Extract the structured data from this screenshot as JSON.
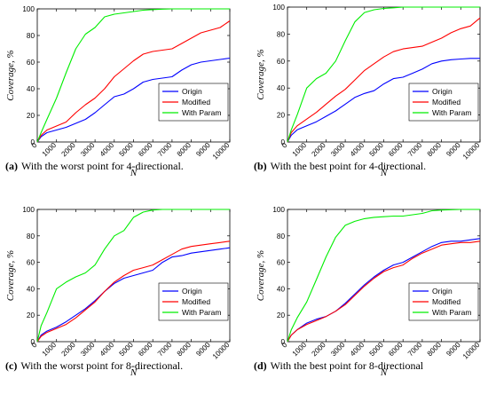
{
  "colors": {
    "Origin": "#0000ff",
    "Modified": "#ff0000",
    "With Param": "#00ee00"
  },
  "chart_data": [
    {
      "id": "a",
      "type": "line",
      "caption_tag": "(a)",
      "caption_text": "With the worst point for 4-directional.",
      "xlabel": "N",
      "ylabel": "Coverage, %",
      "xlim": [
        0,
        10000
      ],
      "ylim": [
        0,
        100
      ],
      "xticks": [
        0,
        1000,
        2000,
        3000,
        4000,
        5000,
        6000,
        7000,
        8000,
        9000,
        10000
      ],
      "yticks": [
        0,
        20,
        40,
        60,
        80,
        100
      ],
      "legend_position": "lower-right",
      "series": [
        {
          "name": "Origin",
          "x": [
            0,
            200,
            500,
            1000,
            1500,
            2000,
            2500,
            3000,
            3500,
            4000,
            4500,
            5000,
            5500,
            6000,
            6500,
            7000,
            7500,
            8000,
            8500,
            9000,
            9500,
            10000
          ],
          "y": [
            0,
            4,
            7,
            9,
            11,
            14,
            17,
            22,
            28,
            34,
            36,
            40,
            45,
            47,
            48,
            49,
            54,
            58,
            60,
            61,
            62,
            63
          ]
        },
        {
          "name": "Modified",
          "x": [
            0,
            200,
            500,
            1000,
            1500,
            2000,
            2500,
            3000,
            3500,
            4000,
            4500,
            5000,
            5500,
            6000,
            6500,
            7000,
            7500,
            8000,
            8500,
            9000,
            9500,
            10000
          ],
          "y": [
            0,
            5,
            9,
            12,
            15,
            22,
            28,
            33,
            40,
            49,
            55,
            61,
            66,
            68,
            69,
            70,
            74,
            78,
            82,
            84,
            86,
            91
          ]
        },
        {
          "name": "With Param",
          "x": [
            0,
            200,
            500,
            1000,
            1500,
            2000,
            2500,
            3000,
            3500,
            4000,
            4500,
            5000,
            5500,
            6000,
            6500,
            7000,
            8000,
            9000,
            10000
          ],
          "y": [
            0,
            7,
            17,
            33,
            52,
            70,
            81,
            86,
            94,
            96,
            97,
            98,
            99,
            99.5,
            99.8,
            100,
            100,
            100,
            100
          ]
        }
      ]
    },
    {
      "id": "b",
      "type": "line",
      "caption_tag": "(b)",
      "caption_text": "With the best point for 4-directional.",
      "xlabel": "N",
      "ylabel": "Coverage, %",
      "xlim": [
        0,
        10000
      ],
      "ylim": [
        0,
        100
      ],
      "xticks": [
        0,
        1000,
        2000,
        3000,
        4000,
        5000,
        6000,
        7000,
        8000,
        9000,
        10000
      ],
      "yticks": [
        0,
        20,
        40,
        60,
        80,
        100
      ],
      "legend_position": "lower-right",
      "series": [
        {
          "name": "Origin",
          "x": [
            0,
            200,
            500,
            1000,
            1500,
            2000,
            2500,
            3000,
            3500,
            4000,
            4500,
            5000,
            5500,
            6000,
            6500,
            7000,
            7500,
            8000,
            8500,
            9000,
            9500,
            10000
          ],
          "y": [
            0,
            5,
            9,
            12,
            15,
            19,
            23,
            28,
            33,
            36,
            38,
            43,
            47,
            48,
            51,
            54,
            58,
            60,
            61,
            61.5,
            62,
            62
          ]
        },
        {
          "name": "Modified",
          "x": [
            0,
            200,
            500,
            1000,
            1500,
            2000,
            2500,
            3000,
            3500,
            4000,
            4500,
            5000,
            5500,
            6000,
            6500,
            7000,
            7500,
            8000,
            8500,
            9000,
            9500,
            10000
          ],
          "y": [
            0,
            7,
            12,
            17,
            22,
            28,
            34,
            39,
            46,
            53,
            58,
            63,
            67,
            69,
            70,
            71,
            74,
            77,
            81,
            84,
            86,
            92
          ]
        },
        {
          "name": "With Param",
          "x": [
            0,
            200,
            500,
            1000,
            1500,
            2000,
            2500,
            3000,
            3500,
            4000,
            4500,
            5000,
            5500,
            6000,
            7000,
            8000,
            9000,
            10000
          ],
          "y": [
            0,
            9,
            20,
            40,
            47,
            51,
            60,
            75,
            89,
            96,
            98,
            99,
            99.5,
            100,
            100,
            100,
            100,
            100
          ]
        }
      ]
    },
    {
      "id": "c",
      "type": "line",
      "caption_tag": "(c)",
      "caption_text": "With the worst point for 8-directional.",
      "xlabel": "N",
      "ylabel": "Coverage, %",
      "xlim": [
        0,
        10000
      ],
      "ylim": [
        0,
        100
      ],
      "xticks": [
        0,
        1000,
        2000,
        3000,
        4000,
        5000,
        6000,
        7000,
        8000,
        9000,
        10000
      ],
      "yticks": [
        0,
        20,
        40,
        60,
        80,
        100
      ],
      "legend_position": "lower-right",
      "series": [
        {
          "name": "Origin",
          "x": [
            0,
            200,
            500,
            1000,
            1500,
            2000,
            2500,
            3000,
            3500,
            4000,
            4500,
            5000,
            5500,
            6000,
            6500,
            7000,
            7500,
            8000,
            8500,
            9000,
            9500,
            10000
          ],
          "y": [
            0,
            5,
            8,
            11,
            15,
            20,
            25,
            31,
            38,
            44,
            48,
            50,
            52,
            54,
            60,
            64,
            65,
            67,
            68,
            69,
            70,
            71
          ]
        },
        {
          "name": "Modified",
          "x": [
            0,
            200,
            500,
            1000,
            1500,
            2000,
            2500,
            3000,
            3500,
            4000,
            4500,
            5000,
            5500,
            6000,
            6500,
            7000,
            7500,
            8000,
            8500,
            9000,
            9500,
            10000
          ],
          "y": [
            0,
            4,
            7,
            10,
            13,
            18,
            24,
            30,
            38,
            45,
            50,
            54,
            56,
            58,
            62,
            66,
            70,
            72,
            73,
            74,
            75,
            76
          ]
        },
        {
          "name": "With Param",
          "x": [
            0,
            200,
            500,
            1000,
            1500,
            2000,
            2500,
            3000,
            3500,
            4000,
            4500,
            5000,
            5500,
            6000,
            6500,
            7000,
            8000,
            9000,
            10000
          ],
          "y": [
            0,
            12,
            22,
            40,
            45,
            49,
            52,
            58,
            70,
            80,
            84,
            94,
            98,
            99.5,
            100,
            100,
            100,
            100,
            100
          ]
        }
      ]
    },
    {
      "id": "d",
      "type": "line",
      "caption_tag": "(d)",
      "caption_text": "With the best point for 8-directional",
      "xlabel": "N",
      "ylabel": "Coverage, %",
      "xlim": [
        0,
        10000
      ],
      "ylim": [
        0,
        100
      ],
      "xticks": [
        0,
        1000,
        2000,
        3000,
        4000,
        5000,
        6000,
        7000,
        8000,
        9000,
        10000
      ],
      "yticks": [
        0,
        20,
        40,
        60,
        80,
        100
      ],
      "legend_position": "lower-right",
      "series": [
        {
          "name": "Origin",
          "x": [
            0,
            200,
            500,
            1000,
            1500,
            2000,
            2500,
            3000,
            3500,
            4000,
            4500,
            5000,
            5500,
            6000,
            6500,
            7000,
            7500,
            8000,
            8500,
            9000,
            9500,
            10000
          ],
          "y": [
            0,
            5,
            9,
            14,
            17,
            19,
            23,
            29,
            36,
            43,
            49,
            54,
            58,
            60,
            64,
            68,
            72,
            75,
            76,
            76,
            77,
            78
          ]
        },
        {
          "name": "Modified",
          "x": [
            0,
            200,
            500,
            1000,
            1500,
            2000,
            2500,
            3000,
            3500,
            4000,
            4500,
            5000,
            5500,
            6000,
            6500,
            7000,
            7500,
            8000,
            8500,
            9000,
            9500,
            10000
          ],
          "y": [
            0,
            5,
            9,
            13,
            16,
            19,
            23,
            28,
            35,
            42,
            48,
            53,
            56,
            58,
            63,
            67,
            70,
            73,
            74,
            75,
            75,
            76
          ]
        },
        {
          "name": "With Param",
          "x": [
            0,
            200,
            500,
            1000,
            1500,
            2000,
            2500,
            3000,
            3500,
            4000,
            4500,
            5000,
            5500,
            6000,
            6500,
            7000,
            7500,
            8000,
            9000,
            10000
          ],
          "y": [
            0,
            9,
            18,
            30,
            47,
            64,
            79,
            88,
            91,
            93,
            94,
            94.5,
            95,
            95,
            96,
            97,
            99,
            99.5,
            100,
            100
          ]
        }
      ]
    }
  ]
}
